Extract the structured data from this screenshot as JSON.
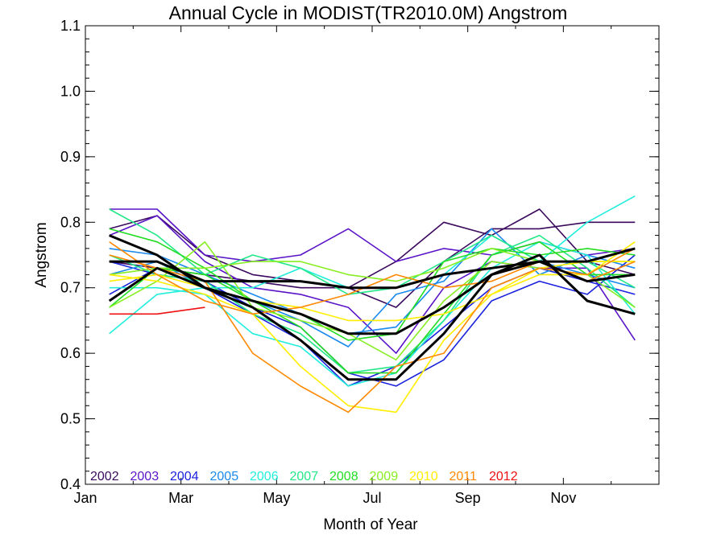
{
  "chart_data": {
    "type": "line",
    "title": "Annual Cycle in MODIST(TR2010.0M) Angstrom",
    "xlabel": "Month of Year",
    "ylabel": "Angstrom",
    "xlim": [
      0,
      12
    ],
    "ylim": [
      0.4,
      1.1
    ],
    "x_ticks": [
      {
        "value": 0,
        "label": "Jan"
      },
      {
        "value": 2,
        "label": "Mar"
      },
      {
        "value": 4,
        "label": "May"
      },
      {
        "value": 6,
        "label": "Jul"
      },
      {
        "value": 8,
        "label": "Sep"
      },
      {
        "value": 10,
        "label": "Nov"
      }
    ],
    "y_ticks": [
      {
        "value": 0.4,
        "label": "0.4"
      },
      {
        "value": 0.5,
        "label": "0.5"
      },
      {
        "value": 0.6,
        "label": "0.6"
      },
      {
        "value": 0.7,
        "label": "0.7"
      },
      {
        "value": 0.8,
        "label": "0.8"
      },
      {
        "value": 0.9,
        "label": "0.9"
      },
      {
        "value": 1.0,
        "label": "1.0"
      },
      {
        "value": 1.1,
        "label": "1.1"
      }
    ],
    "x": [
      0.5,
      1.5,
      2.5,
      3.5,
      4.5,
      5.5,
      6.5,
      7.5,
      8.5,
      9.5,
      10.5,
      11.5
    ],
    "grid": false,
    "legend_position": "bottom-left",
    "series": [
      {
        "name": "2002",
        "color": "#3b0a5e",
        "width": 1.6,
        "values": [
          0.79,
          0.81,
          0.75,
          0.72,
          0.71,
          0.7,
          0.74,
          0.8,
          0.78,
          0.82,
          0.74,
          0.72
        ]
      },
      {
        "name": "",
        "color": "#3b0a5e",
        "width": 1.6,
        "values": [
          0.74,
          0.73,
          0.72,
          0.71,
          0.7,
          0.7,
          0.67,
          0.74,
          0.79,
          0.79,
          0.8,
          0.8
        ]
      },
      {
        "name": "2003",
        "color": "#5a14c8",
        "width": 1.6,
        "values": [
          0.82,
          0.82,
          0.75,
          0.74,
          0.75,
          0.79,
          0.74,
          0.76,
          0.75,
          0.77,
          0.75,
          0.76
        ]
      },
      {
        "name": "",
        "color": "#5a14c8",
        "width": 1.6,
        "values": [
          0.78,
          0.81,
          0.74,
          0.7,
          0.69,
          0.67,
          0.6,
          0.7,
          0.74,
          0.73,
          0.73,
          0.62
        ]
      },
      {
        "name": "2004",
        "color": "#1a22dd",
        "width": 1.6,
        "values": [
          0.74,
          0.72,
          0.71,
          0.67,
          0.64,
          0.57,
          0.55,
          0.59,
          0.68,
          0.71,
          0.69,
          0.75
        ]
      },
      {
        "name": "",
        "color": "#1a22dd",
        "width": 1.6,
        "values": [
          0.69,
          0.73,
          0.7,
          0.66,
          0.62,
          0.55,
          0.58,
          0.64,
          0.7,
          0.73,
          0.71,
          0.69
        ]
      },
      {
        "name": "2005",
        "color": "#1a8aee",
        "width": 1.6,
        "values": [
          0.72,
          0.74,
          0.7,
          0.68,
          0.65,
          0.61,
          0.69,
          0.71,
          0.79,
          0.72,
          0.75,
          0.73
        ]
      },
      {
        "name": "",
        "color": "#1a8aee",
        "width": 1.6,
        "values": [
          0.76,
          0.75,
          0.72,
          0.69,
          0.66,
          0.63,
          0.64,
          0.72,
          0.73,
          0.74,
          0.72,
          0.7
        ]
      },
      {
        "name": "2006",
        "color": "#22eedd",
        "width": 1.6,
        "values": [
          0.63,
          0.69,
          0.7,
          0.7,
          0.73,
          0.7,
          0.7,
          0.72,
          0.78,
          0.74,
          0.8,
          0.84
        ]
      },
      {
        "name": "",
        "color": "#22eedd",
        "width": 1.6,
        "values": [
          0.7,
          0.7,
          0.69,
          0.63,
          0.61,
          0.55,
          0.57,
          0.65,
          0.73,
          0.77,
          0.75,
          0.66
        ]
      },
      {
        "name": "2007",
        "color": "#22e888",
        "width": 1.6,
        "values": [
          0.82,
          0.78,
          0.72,
          0.75,
          0.73,
          0.69,
          0.7,
          0.74,
          0.78,
          0.74,
          0.74,
          0.7
        ]
      },
      {
        "name": "",
        "color": "#22e888",
        "width": 1.6,
        "values": [
          0.75,
          0.72,
          0.71,
          0.66,
          0.63,
          0.57,
          0.58,
          0.65,
          0.75,
          0.78,
          0.73,
          0.67
        ]
      },
      {
        "name": "2008",
        "color": "#22dd22",
        "width": 1.6,
        "values": [
          0.79,
          0.77,
          0.73,
          0.68,
          0.66,
          0.62,
          0.63,
          0.74,
          0.76,
          0.75,
          0.76,
          0.75
        ]
      },
      {
        "name": "",
        "color": "#22dd22",
        "width": 1.6,
        "values": [
          0.67,
          0.73,
          0.72,
          0.68,
          0.64,
          0.57,
          0.57,
          0.66,
          0.75,
          0.77,
          0.72,
          0.72
        ]
      },
      {
        "name": "2009",
        "color": "#88ee22",
        "width": 1.6,
        "values": [
          0.72,
          0.73,
          0.73,
          0.74,
          0.74,
          0.72,
          0.71,
          0.73,
          0.76,
          0.74,
          0.74,
          0.74
        ]
      },
      {
        "name": "",
        "color": "#88ee22",
        "width": 1.6,
        "values": [
          0.67,
          0.71,
          0.77,
          0.67,
          0.65,
          0.63,
          0.59,
          0.68,
          0.74,
          0.73,
          0.72,
          0.67
        ]
      },
      {
        "name": "2010",
        "color": "#ffee00",
        "width": 1.6,
        "values": [
          0.72,
          0.71,
          0.69,
          0.66,
          0.58,
          0.52,
          0.51,
          0.62,
          0.69,
          0.72,
          0.72,
          0.77
        ]
      },
      {
        "name": "",
        "color": "#ffee00",
        "width": 1.6,
        "values": [
          0.71,
          0.72,
          0.7,
          0.68,
          0.67,
          0.65,
          0.65,
          0.66,
          0.69,
          0.73,
          0.74,
          0.74
        ]
      },
      {
        "name": "2011",
        "color": "#ff8800",
        "width": 1.6,
        "values": [
          0.75,
          0.73,
          0.71,
          0.6,
          0.55,
          0.51,
          0.58,
          0.6,
          0.7,
          0.73,
          0.72,
          0.76
        ]
      },
      {
        "name": "",
        "color": "#ff8800",
        "width": 1.6,
        "values": [
          0.77,
          0.72,
          0.68,
          0.66,
          0.67,
          0.69,
          0.72,
          0.7,
          0.71,
          0.74,
          0.71,
          0.74
        ]
      },
      {
        "name": "2012",
        "color": "#ee1111",
        "width": 1.6,
        "values": [
          0.66,
          0.66,
          0.67,
          null,
          null,
          null,
          null,
          null,
          null,
          null,
          null,
          null
        ]
      },
      {
        "name": "",
        "color": "#000000",
        "width": 3,
        "values": [
          0.74,
          0.74,
          0.71,
          0.71,
          0.71,
          0.7,
          0.7,
          0.72,
          0.73,
          0.74,
          0.71,
          0.72
        ]
      },
      {
        "name": "",
        "color": "#000000",
        "width": 3,
        "values": [
          0.68,
          0.73,
          0.7,
          0.68,
          0.66,
          0.63,
          0.63,
          0.67,
          0.72,
          0.74,
          0.74,
          0.76
        ]
      },
      {
        "name": "",
        "color": "#000000",
        "width": 3,
        "values": [
          0.78,
          0.75,
          0.7,
          0.67,
          0.62,
          0.56,
          0.56,
          0.63,
          0.72,
          0.75,
          0.68,
          0.66
        ]
      }
    ]
  }
}
